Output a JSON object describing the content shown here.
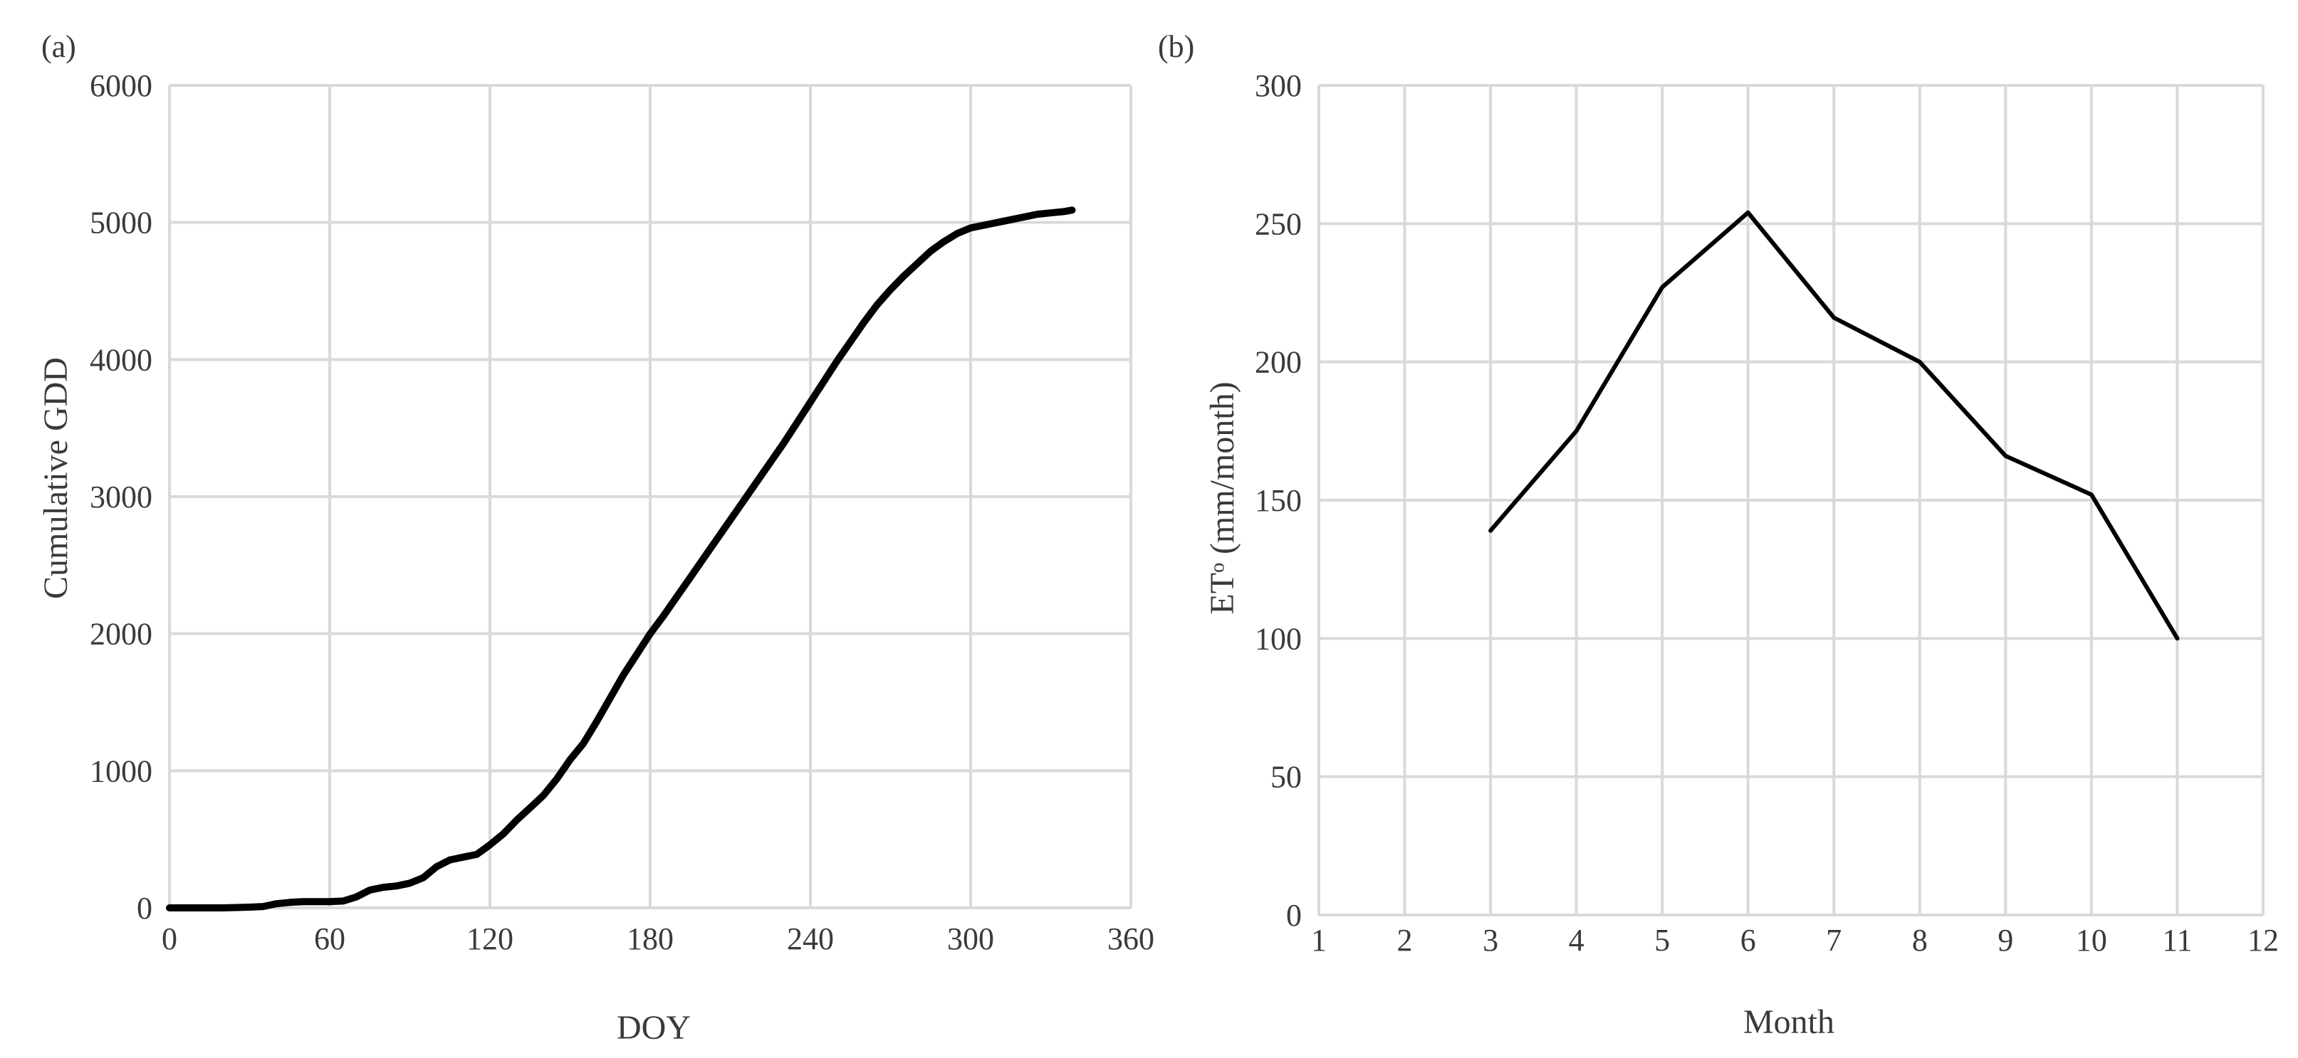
{
  "figure": {
    "colors": {
      "line": "#000000",
      "grid": "#d9d9d9",
      "text": "#3a3a3a",
      "background": "#ffffff"
    }
  },
  "chart_data": [
    {
      "panel_label": "(a)",
      "type": "line",
      "xlabel": "DOY",
      "ylabel": "Cumulative GDD",
      "xlim": [
        0,
        360
      ],
      "ylim": [
        0,
        6000
      ],
      "xticks": [
        0,
        60,
        120,
        180,
        240,
        300,
        360
      ],
      "yticks": [
        0,
        1000,
        2000,
        3000,
        4000,
        5000,
        6000
      ],
      "grid": true,
      "series": [
        {
          "x": [
            0,
            10,
            20,
            30,
            35,
            40,
            45,
            50,
            55,
            60,
            65,
            70,
            75,
            80,
            85,
            90,
            95,
            100,
            105,
            110,
            115,
            120,
            125,
            130,
            135,
            140,
            145,
            150,
            155,
            160,
            165,
            170,
            175,
            180,
            185,
            190,
            195,
            200,
            205,
            210,
            215,
            220,
            225,
            230,
            235,
            240,
            245,
            250,
            255,
            260,
            265,
            270,
            275,
            280,
            285,
            290,
            295,
            300,
            305,
            310,
            315,
            320,
            325,
            330,
            335,
            338
          ],
          "y": [
            0,
            0,
            0,
            5,
            10,
            30,
            40,
            45,
            45,
            45,
            50,
            80,
            130,
            150,
            160,
            180,
            220,
            300,
            350,
            370,
            390,
            460,
            540,
            640,
            730,
            820,
            940,
            1080,
            1200,
            1360,
            1530,
            1700,
            1850,
            2000,
            2130,
            2270,
            2410,
            2550,
            2690,
            2830,
            2970,
            3110,
            3250,
            3390,
            3540,
            3690,
            3840,
            3990,
            4130,
            4270,
            4400,
            4510,
            4610,
            4700,
            4790,
            4860,
            4920,
            4960,
            4980,
            5000,
            5020,
            5040,
            5060,
            5070,
            5080,
            5090
          ]
        }
      ]
    },
    {
      "panel_label": "(b)",
      "type": "line",
      "xlabel": "Month",
      "ylabel": "ETᵒ (mm/month)",
      "xlim": [
        1,
        12
      ],
      "ylim": [
        0,
        300
      ],
      "xticks": [
        1,
        2,
        3,
        4,
        5,
        6,
        7,
        8,
        9,
        10,
        11,
        12
      ],
      "yticks": [
        0,
        50,
        100,
        150,
        200,
        250,
        300
      ],
      "grid": true,
      "series": [
        {
          "x": [
            3,
            4,
            5,
            6,
            7,
            8,
            9,
            10,
            11
          ],
          "y": [
            139,
            175,
            227,
            254,
            216,
            200,
            166,
            152,
            100
          ]
        }
      ]
    }
  ]
}
